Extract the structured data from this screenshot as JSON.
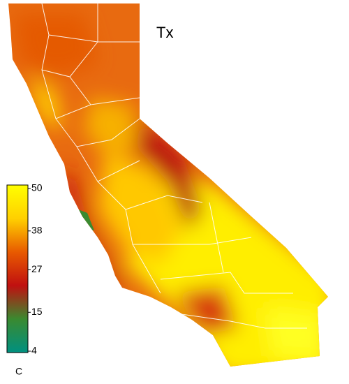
{
  "title": "Tx",
  "legend": {
    "unit": "C",
    "range": [
      4,
      50
    ],
    "ticks": [
      50,
      38,
      27,
      15,
      4
    ],
    "colors": [
      "#ffff00",
      "#ffd000",
      "#e85a00",
      "#c01010",
      "#3a8a30",
      "#009080"
    ]
  }
}
